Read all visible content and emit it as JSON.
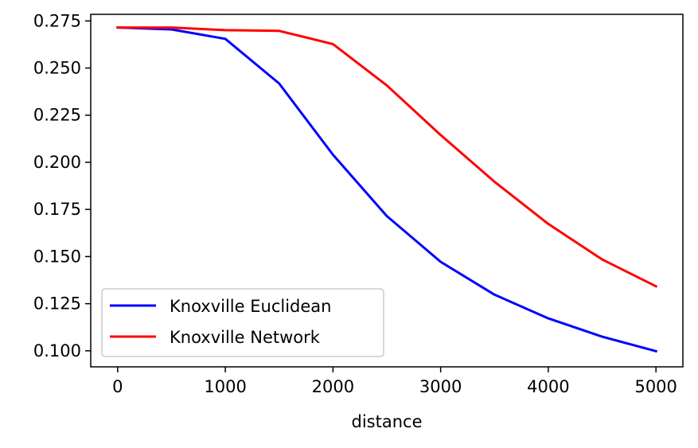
{
  "chart_data": {
    "type": "line",
    "title": "",
    "xlabel": "distance",
    "ylabel": "",
    "xlim": [
      -250,
      5250
    ],
    "ylim": [
      0.0915,
      0.2785
    ],
    "x_ticks": [
      0,
      1000,
      2000,
      3000,
      4000,
      5000
    ],
    "x_tick_labels": [
      "0",
      "1000",
      "2000",
      "3000",
      "4000",
      "5000"
    ],
    "y_ticks": [
      0.1,
      0.125,
      0.15,
      0.175,
      0.2,
      0.225,
      0.25,
      0.275
    ],
    "y_tick_labels": [
      "0.100",
      "0.125",
      "0.150",
      "0.175",
      "0.200",
      "0.225",
      "0.250",
      "0.275"
    ],
    "grid": false,
    "legend_position": "lower-left",
    "x": [
      0,
      500,
      1000,
      1500,
      2000,
      2500,
      3000,
      3500,
      4000,
      4500,
      5000
    ],
    "series": [
      {
        "name": "Knoxville Euclidean",
        "color": "#0000ff",
        "values": [
          0.2715,
          0.2705,
          0.2655,
          0.2418,
          0.204,
          0.1715,
          0.1472,
          0.1298,
          0.1172,
          0.1075,
          0.0998
        ]
      },
      {
        "name": "Knoxville Network",
        "color": "#ff0000",
        "values": [
          0.2715,
          0.2715,
          0.2701,
          0.2697,
          0.2627,
          0.2408,
          0.2145,
          0.1897,
          0.1673,
          0.1485,
          0.1342
        ]
      }
    ]
  }
}
